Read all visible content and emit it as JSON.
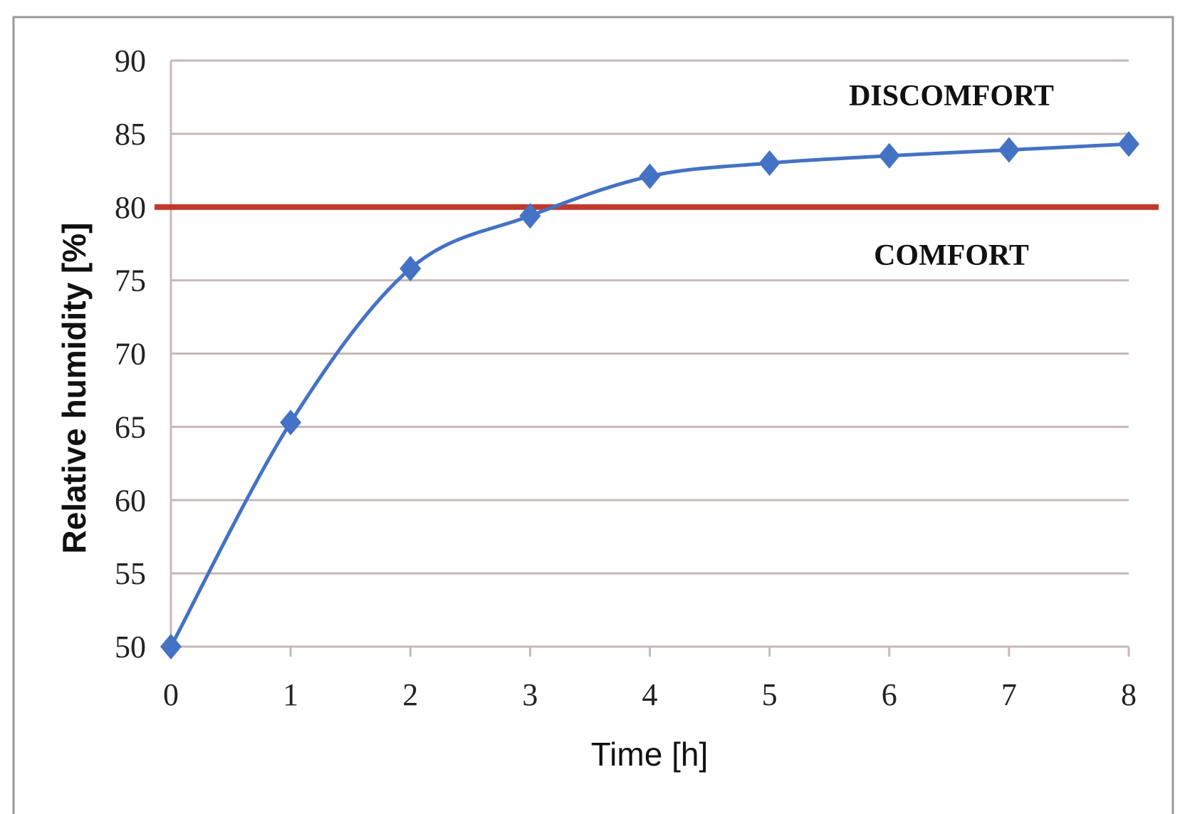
{
  "chart_data": {
    "type": "line",
    "xlabel": "Time [h]",
    "ylabel": "Relative humidity [%]",
    "x": [
      0,
      1,
      2,
      3,
      4,
      5,
      6,
      7,
      8
    ],
    "series": [
      {
        "values": [
          50,
          65.3,
          75.8,
          79.4,
          82.1,
          83.0,
          83.5,
          83.9,
          84.3
        ],
        "color": "#4472c4",
        "marker": "diamond"
      }
    ],
    "xlim": [
      0,
      8
    ],
    "ylim": [
      50,
      90
    ],
    "xticks": [
      "0",
      "1",
      "2",
      "3",
      "4",
      "5",
      "6",
      "7",
      "8"
    ],
    "yticks": [
      "50",
      "55",
      "60",
      "65",
      "70",
      "75",
      "80",
      "85",
      "90"
    ],
    "grid": "horizontal",
    "threshold": {
      "value": 80,
      "color": "#c0392b"
    },
    "annotations": {
      "above": "DISCOMFORT",
      "below": "COMFORT"
    }
  }
}
